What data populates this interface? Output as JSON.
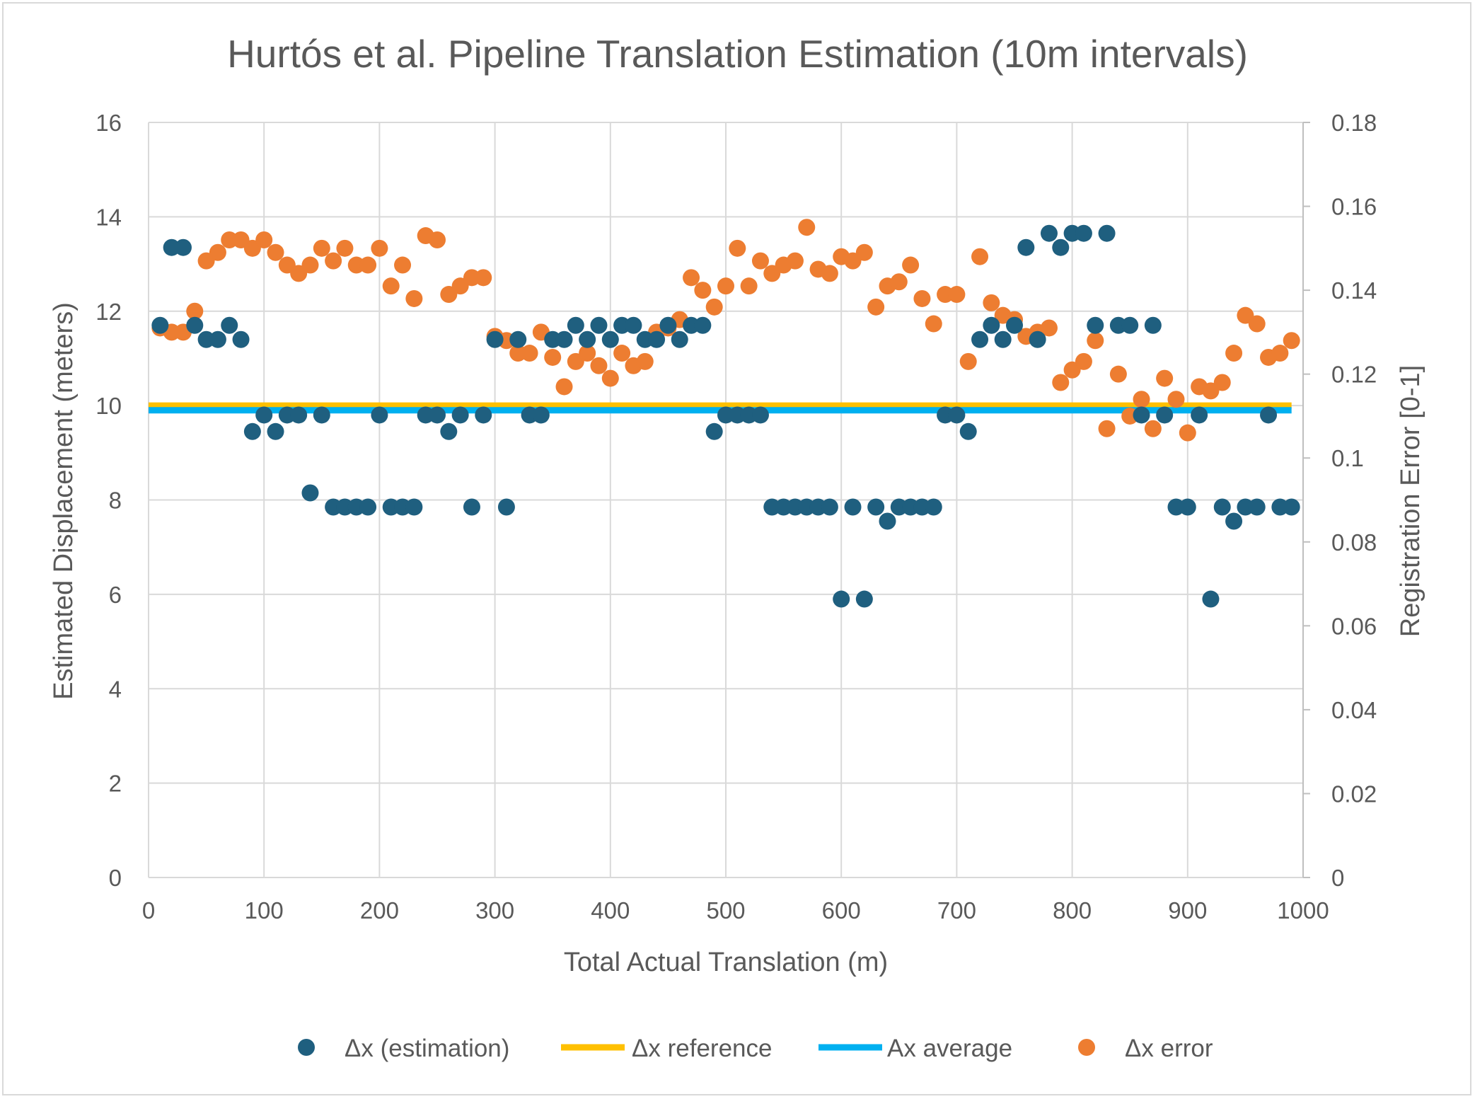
{
  "chart_data": {
    "type": "scatter",
    "title": "Hurtós et al. Pipeline Translation Estimation (10m intervals)",
    "xlabel": "Total Actual Translation (m)",
    "ylabel": "Estimated Displacement (meters)",
    "y2label": "Registration Error [0-1]",
    "xlim": [
      0,
      1000
    ],
    "ylim": [
      0,
      16
    ],
    "y2lim": [
      0,
      0.18
    ],
    "x_ticks": [
      "0",
      "100",
      "200",
      "300",
      "400",
      "500",
      "600",
      "700",
      "800",
      "900",
      "1000"
    ],
    "y_ticks": [
      "0",
      "2",
      "4",
      "6",
      "8",
      "10",
      "12",
      "14",
      "16"
    ],
    "y2_ticks": [
      "0",
      "0.02",
      "0.04",
      "0.06",
      "0.08",
      "0.1",
      "0.12",
      "0.14",
      "0.16",
      "0.18"
    ],
    "grid": true,
    "legend_position": "bottom",
    "colors": {
      "estimation": "#1f5f7f",
      "reference": "#ffc000",
      "average": "#00b0f0",
      "error": "#ed7d31"
    },
    "series": [
      {
        "name": "Δx (estimation)",
        "kind": "scatter",
        "axis": "left",
        "x": [
          10,
          20,
          30,
          40,
          50,
          60,
          70,
          80,
          90,
          100,
          110,
          120,
          130,
          140,
          150,
          160,
          170,
          180,
          190,
          200,
          210,
          220,
          230,
          240,
          250,
          260,
          270,
          280,
          290,
          300,
          310,
          320,
          330,
          340,
          350,
          360,
          370,
          380,
          390,
          400,
          410,
          420,
          430,
          440,
          450,
          460,
          470,
          480,
          490,
          500,
          510,
          520,
          530,
          540,
          550,
          560,
          570,
          580,
          590,
          600,
          610,
          620,
          630,
          640,
          650,
          660,
          670,
          680,
          690,
          700,
          710,
          720,
          730,
          740,
          750,
          760,
          770,
          780,
          790,
          800,
          810,
          820,
          830,
          840,
          850,
          860,
          870,
          880,
          890,
          900,
          910,
          920,
          930,
          940,
          950,
          960,
          970,
          980,
          990
        ],
        "y": [
          11.7,
          13.35,
          13.35,
          11.7,
          11.4,
          11.4,
          11.7,
          11.4,
          9.45,
          9.8,
          9.45,
          9.8,
          9.8,
          8.15,
          9.8,
          7.85,
          7.85,
          7.85,
          7.85,
          9.8,
          7.85,
          7.85,
          7.85,
          9.8,
          9.8,
          9.45,
          9.8,
          7.85,
          9.8,
          11.4,
          7.85,
          11.4,
          9.8,
          9.8,
          11.4,
          11.4,
          11.7,
          11.4,
          11.7,
          11.4,
          11.7,
          11.7,
          11.4,
          11.4,
          11.7,
          11.4,
          11.7,
          11.7,
          9.45,
          9.8,
          9.8,
          9.8,
          9.8,
          7.85,
          7.85,
          7.85,
          7.85,
          7.85,
          7.85,
          5.9,
          7.85,
          5.9,
          7.85,
          7.55,
          7.85,
          7.85,
          7.85,
          7.85,
          9.8,
          9.8,
          9.45,
          11.4,
          11.7,
          11.4,
          11.7,
          13.35,
          11.4,
          13.65,
          13.35,
          13.65,
          13.65,
          11.7,
          13.65,
          11.7,
          11.7,
          9.8,
          11.7,
          9.8,
          7.85,
          7.85,
          9.8,
          5.9,
          7.85,
          7.55,
          7.85,
          7.85,
          9.8,
          7.85,
          7.85
        ]
      },
      {
        "name": "Δx reference",
        "kind": "line",
        "axis": "left",
        "x": [
          0,
          990
        ],
        "y": [
          10,
          10
        ]
      },
      {
        "name": "Ax average",
        "kind": "line",
        "axis": "left",
        "x": [
          0,
          990
        ],
        "y": [
          9.9,
          9.9
        ]
      },
      {
        "name": "Δx error",
        "kind": "scatter",
        "axis": "right",
        "x": [
          10,
          20,
          30,
          40,
          50,
          60,
          70,
          80,
          90,
          100,
          110,
          120,
          130,
          140,
          150,
          160,
          170,
          180,
          190,
          200,
          210,
          220,
          230,
          240,
          250,
          260,
          270,
          280,
          290,
          300,
          310,
          320,
          330,
          340,
          350,
          360,
          370,
          380,
          390,
          400,
          410,
          420,
          430,
          440,
          450,
          460,
          470,
          480,
          490,
          500,
          510,
          520,
          530,
          540,
          550,
          560,
          570,
          580,
          590,
          600,
          610,
          620,
          630,
          640,
          650,
          660,
          670,
          680,
          690,
          700,
          710,
          720,
          730,
          740,
          750,
          760,
          770,
          780,
          790,
          800,
          810,
          820,
          830,
          840,
          850,
          860,
          870,
          880,
          890,
          900,
          910,
          920,
          930,
          940,
          950,
          960,
          970,
          980,
          990
        ],
        "y": [
          0.131,
          0.13,
          0.13,
          0.135,
          0.147,
          0.149,
          0.152,
          0.152,
          0.15,
          0.152,
          0.149,
          0.146,
          0.144,
          0.146,
          0.15,
          0.147,
          0.15,
          0.146,
          0.146,
          0.15,
          0.141,
          0.146,
          0.138,
          0.153,
          0.152,
          0.139,
          0.141,
          0.143,
          0.143,
          0.129,
          0.128,
          0.125,
          0.125,
          0.13,
          0.124,
          0.117,
          0.123,
          0.125,
          0.122,
          0.119,
          0.125,
          0.122,
          0.123,
          0.13,
          0.131,
          0.133,
          0.143,
          0.14,
          0.136,
          0.141,
          0.15,
          0.141,
          0.147,
          0.144,
          0.146,
          0.147,
          0.155,
          0.145,
          0.144,
          0.148,
          0.147,
          0.149,
          0.136,
          0.141,
          0.142,
          0.146,
          0.138,
          0.132,
          0.139,
          0.139,
          0.123,
          0.148,
          0.137,
          0.134,
          0.133,
          0.129,
          0.13,
          0.131,
          0.118,
          0.121,
          0.123,
          0.128,
          0.107,
          0.12,
          0.11,
          0.114,
          0.107,
          0.119,
          0.114,
          0.106,
          0.117,
          0.116,
          0.118,
          0.125,
          0.134,
          0.132,
          0.124,
          0.125,
          0.128
        ]
      }
    ]
  }
}
